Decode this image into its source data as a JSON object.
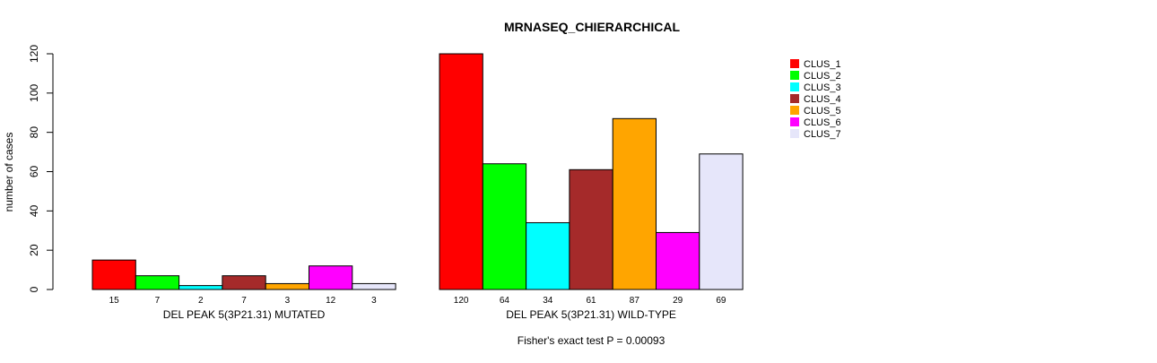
{
  "chart_data": {
    "type": "bar",
    "title": "MRNASEQ_CHIERARCHICAL",
    "ylabel": "number of cases",
    "ylim": [
      0,
      120
    ],
    "yticks": [
      "0",
      "20",
      "40",
      "60",
      "80",
      "100",
      "120"
    ],
    "ytick_values": [
      0,
      20,
      40,
      60,
      80,
      100,
      120
    ],
    "legend_position": "top-right",
    "series": [
      {
        "name": "CLUS_1",
        "color": "#ff0000"
      },
      {
        "name": "CLUS_2",
        "color": "#00ff00"
      },
      {
        "name": "CLUS_3",
        "color": "#00ffff"
      },
      {
        "name": "CLUS_4",
        "color": "#a52a2a"
      },
      {
        "name": "CLUS_5",
        "color": "#ffa500"
      },
      {
        "name": "CLUS_6",
        "color": "#ff00ff"
      },
      {
        "name": "CLUS_7",
        "color": "#e6e6fa"
      }
    ],
    "groups": [
      {
        "label": "DEL PEAK  5(3P21.31) MUTATED",
        "values": [
          15,
          7,
          2,
          7,
          3,
          12,
          3
        ]
      },
      {
        "label": "DEL PEAK  5(3P21.31) WILD-TYPE",
        "values": [
          120,
          64,
          34,
          61,
          87,
          29,
          69
        ]
      }
    ],
    "footnote": "Fisher's exact test P = 0.00093"
  }
}
